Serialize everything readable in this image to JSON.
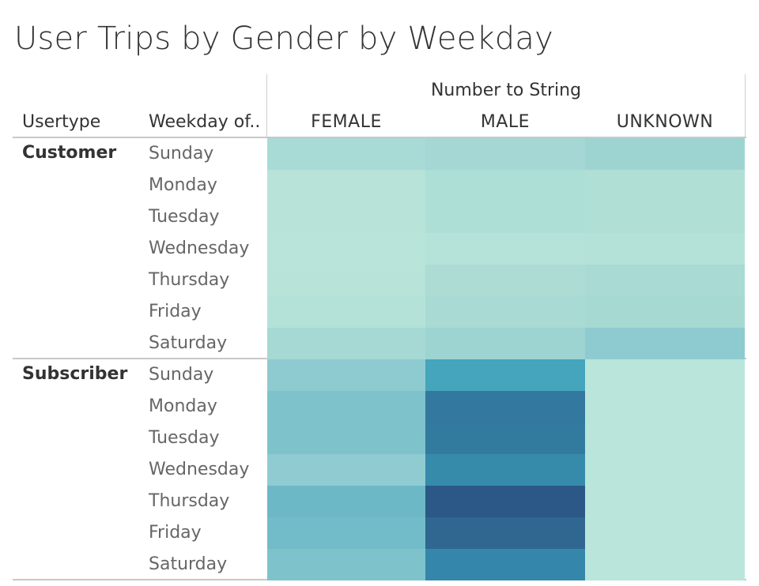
{
  "title": "User Trips by Gender by Weekday",
  "column_group_title": "Number to String",
  "headers": {
    "usertype": "Usertype",
    "weekday": "Weekday of.."
  },
  "chart_data": {
    "type": "heatmap",
    "title": "User Trips by Gender by Weekday",
    "columns": [
      "FEMALE",
      "MALE",
      "UNKNOWN"
    ],
    "groups": [
      {
        "name": "Customer",
        "rows": [
          "Sunday",
          "Monday",
          "Tuesday",
          "Wednesday",
          "Thursday",
          "Friday",
          "Saturday"
        ],
        "colors": [
          [
            "#a8dbd5",
            "#a5d8d4",
            "#9dd4d1"
          ],
          [
            "#b7e3d9",
            "#aedfd6",
            "#b0dfd6"
          ],
          [
            "#b7e3d9",
            "#aedfd6",
            "#b0dfd6"
          ],
          [
            "#b8e4da",
            "#b5e2d9",
            "#b4e2d8"
          ],
          [
            "#b7e3d9",
            "#addcd5",
            "#a9dad4"
          ],
          [
            "#b5e2d8",
            "#a9dad4",
            "#a7d9d3"
          ],
          [
            "#a6d9d3",
            "#9dd4d1",
            "#8ecbd0"
          ]
        ]
      },
      {
        "name": "Subscriber",
        "rows": [
          "Sunday",
          "Monday",
          "Tuesday",
          "Wednesday",
          "Thursday",
          "Friday",
          "Saturday"
        ],
        "colors": [
          [
            "#8ecbd0",
            "#44a5bc",
            "#bae5da"
          ],
          [
            "#7ec3cc",
            "#33789e",
            "#bae5da"
          ],
          [
            "#7ec3cc",
            "#337a9f",
            "#bae5da"
          ],
          [
            "#8fcbd1",
            "#368aaa",
            "#bae5da"
          ],
          [
            "#6cb8c7",
            "#2b5887",
            "#bae5da"
          ],
          [
            "#72bcc9",
            "#2f6791",
            "#bae5da"
          ],
          [
            "#7ec3cc",
            "#3586ab",
            "#bae5da"
          ]
        ]
      }
    ]
  }
}
